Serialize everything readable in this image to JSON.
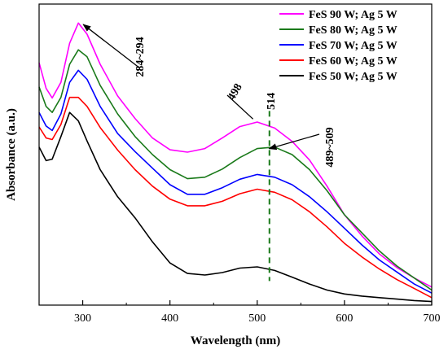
{
  "chart_data": {
    "type": "line",
    "xlabel": "Wavelength (nm)",
    "ylabel": "Absorbance (a.u.)",
    "xlim": [
      250,
      700
    ],
    "xticks": [
      "300",
      "400",
      "500",
      "600",
      "700"
    ],
    "ylim": [
      0,
      1
    ],
    "y_ticks_shown": false,
    "legend_position": "top-right",
    "series": [
      {
        "name": "FeS 90 W; Ag 5 W",
        "color": "#ff00ff",
        "x": [
          250,
          258,
          265,
          275,
          285,
          295,
          305,
          320,
          340,
          360,
          380,
          400,
          420,
          440,
          460,
          480,
          500,
          520,
          540,
          560,
          580,
          600,
          620,
          640,
          660,
          680,
          700
        ],
        "y": [
          0.805,
          0.72,
          0.688,
          0.74,
          0.87,
          0.937,
          0.9,
          0.8,
          0.695,
          0.62,
          0.555,
          0.516,
          0.508,
          0.52,
          0.555,
          0.593,
          0.608,
          0.588,
          0.544,
          0.482,
          0.395,
          0.3,
          0.23,
          0.17,
          0.125,
          0.09,
          0.06
        ]
      },
      {
        "name": "FeS 80 W; Ag 5 W",
        "color": "#1a7a1a",
        "x": [
          250,
          258,
          265,
          275,
          285,
          295,
          305,
          320,
          340,
          360,
          380,
          400,
          420,
          440,
          460,
          480,
          500,
          520,
          540,
          560,
          580,
          600,
          620,
          640,
          660,
          680,
          700
        ],
        "y": [
          0.725,
          0.66,
          0.64,
          0.69,
          0.8,
          0.848,
          0.825,
          0.73,
          0.635,
          0.56,
          0.5,
          0.45,
          0.42,
          0.425,
          0.452,
          0.49,
          0.52,
          0.525,
          0.5,
          0.45,
          0.38,
          0.3,
          0.24,
          0.18,
          0.13,
          0.09,
          0.05
        ]
      },
      {
        "name": "FeS 70 W; Ag 5 W",
        "color": "#0000ff",
        "x": [
          250,
          258,
          265,
          275,
          285,
          295,
          305,
          320,
          340,
          360,
          380,
          400,
          420,
          440,
          460,
          480,
          500,
          520,
          540,
          560,
          580,
          600,
          620,
          640,
          660,
          680,
          700
        ],
        "y": [
          0.64,
          0.595,
          0.58,
          0.635,
          0.74,
          0.78,
          0.75,
          0.66,
          0.57,
          0.51,
          0.455,
          0.4,
          0.368,
          0.368,
          0.39,
          0.418,
          0.434,
          0.425,
          0.4,
          0.36,
          0.31,
          0.255,
          0.2,
          0.15,
          0.11,
          0.07,
          0.04
        ]
      },
      {
        "name": "FeS 60 W; Ag 5 W",
        "color": "#ff0000",
        "x": [
          250,
          258,
          265,
          275,
          285,
          295,
          305,
          320,
          340,
          360,
          380,
          400,
          420,
          440,
          460,
          480,
          500,
          520,
          540,
          560,
          580,
          600,
          620,
          640,
          660,
          680,
          700
        ],
        "y": [
          0.592,
          0.555,
          0.55,
          0.6,
          0.69,
          0.69,
          0.66,
          0.59,
          0.515,
          0.45,
          0.395,
          0.352,
          0.33,
          0.33,
          0.345,
          0.37,
          0.385,
          0.375,
          0.35,
          0.31,
          0.26,
          0.205,
          0.16,
          0.12,
          0.085,
          0.055,
          0.025
        ]
      },
      {
        "name": "FeS 50 W; Ag 5 W",
        "color": "#000000",
        "x": [
          250,
          258,
          265,
          275,
          285,
          295,
          305,
          320,
          340,
          360,
          380,
          400,
          420,
          440,
          460,
          480,
          500,
          520,
          540,
          560,
          580,
          600,
          620,
          640,
          660,
          680,
          700
        ],
        "y": [
          0.525,
          0.48,
          0.485,
          0.56,
          0.64,
          0.612,
          0.545,
          0.45,
          0.36,
          0.29,
          0.21,
          0.14,
          0.105,
          0.1,
          0.108,
          0.123,
          0.127,
          0.115,
          0.093,
          0.07,
          0.05,
          0.037,
          0.03,
          0.025,
          0.02,
          0.015,
          0.012
        ]
      }
    ],
    "reference_line": {
      "x": 514,
      "label": "514",
      "color": "#1a7a1a",
      "style": "dashed",
      "y_range": [
        0.08,
        0.645
      ]
    },
    "annotations": [
      {
        "text": "284~294",
        "arrow_to_x": 295,
        "arrow_to_y": 0.935
      },
      {
        "text": "498",
        "arrow_to_x": 498,
        "arrow_to_y": 0.61
      },
      {
        "text": "489~509",
        "arrow_to_x": 509,
        "arrow_to_y": 0.525
      }
    ]
  }
}
